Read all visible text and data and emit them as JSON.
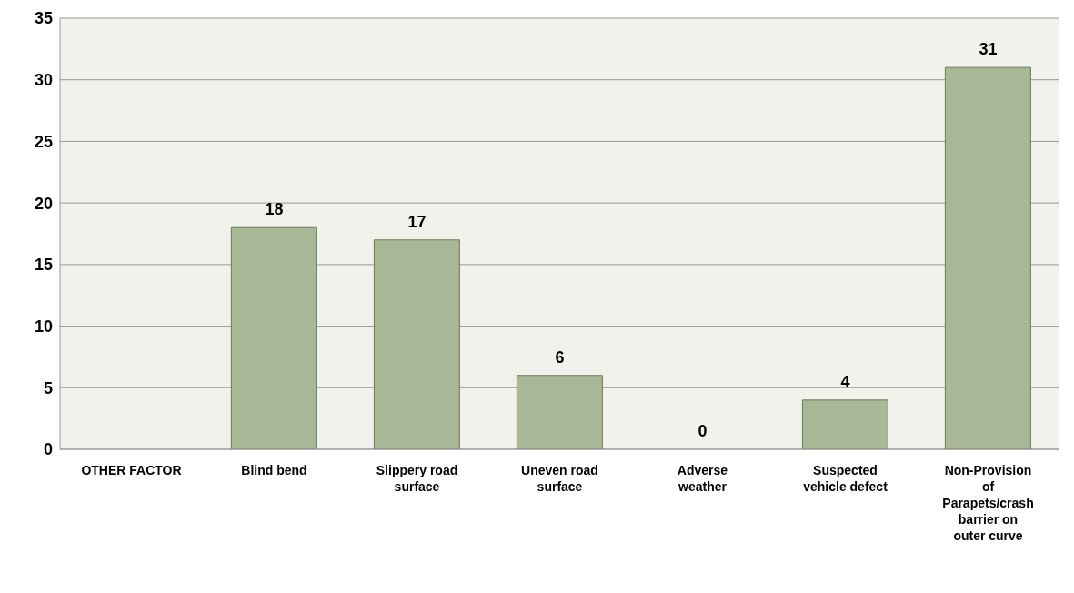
{
  "chart_data": {
    "type": "bar",
    "categories": [
      "OTHER FACTOR",
      "Blind bend",
      "Slippery road surface",
      "Uneven road surface",
      "Adverse weather",
      "Suspected vehicle defect",
      "Non-Provision of Parapets/crash barrier on outer curve"
    ],
    "values": [
      null,
      18,
      17,
      6,
      0,
      4,
      31
    ],
    "color": "#a8b896",
    "ylim": [
      0,
      35
    ],
    "yticks": [
      0,
      5,
      10,
      15,
      20,
      25,
      30,
      35
    ],
    "grid": "y",
    "data_labels": true,
    "legend": false
  }
}
